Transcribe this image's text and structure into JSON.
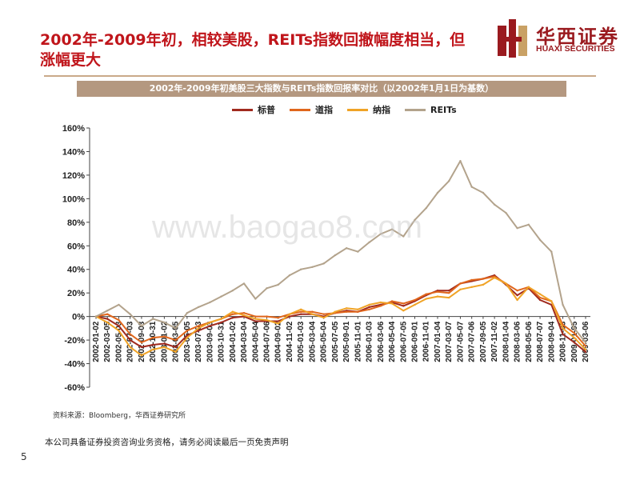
{
  "slide": {
    "title": "2002年-2009年初，相较美股，REITs指数回撤幅度相当，但涨幅更大",
    "source": "资料来源：Bloomberg，华西证券研究所",
    "disclaimer": "本公司具备证券投资咨询业务资格，请务必阅读最后一页免责声明",
    "page_number": "5",
    "watermark": "www.baogao8.com"
  },
  "logo": {
    "cn": "华西证券",
    "en": "HUAXI SECURITIES"
  },
  "colors": {
    "accent": "#c0151b",
    "banner": "#b49880",
    "rule": "#c9a98a"
  },
  "chart_data": {
    "type": "line",
    "title": "2002年-2009年初美股三大指数与REITs指数回报率对比（以2002年1月1日为基数）",
    "ylim": [
      -0.6,
      1.6
    ],
    "yticks": [
      "160%",
      "140%",
      "120%",
      "100%",
      "80%",
      "60%",
      "40%",
      "20%",
      "0%",
      "-20%",
      "-40%",
      "-60%"
    ],
    "ytick_values": [
      1.6,
      1.4,
      1.2,
      1.0,
      0.8,
      0.6,
      0.4,
      0.2,
      0,
      -0.2,
      -0.4,
      -0.6
    ],
    "x": [
      "2002-01-02",
      "2002-03-05",
      "2002-05-03",
      "2002-07-03",
      "2002-09-03",
      "2002-10-31",
      "2003-01-02",
      "2003-03-05",
      "2003-05-05",
      "2003-07-03",
      "2003-09-03",
      "2003-10-31",
      "2004-01-02",
      "2004-03-04",
      "2004-05-04",
      "2004-07-06",
      "2004-09-02",
      "2004-11-02",
      "2005-01-03",
      "2005-03-04",
      "2005-05-04",
      "2005-07-05",
      "2005-09-01",
      "2005-11-01",
      "2006-01-03",
      "2006-03-06",
      "2006-05-04",
      "2006-07-05",
      "2006-09-01",
      "2006-11-01",
      "2007-01-04",
      "2007-03-07",
      "2007-05-07",
      "2007-07-06",
      "2007-09-05",
      "2007-11-02",
      "2008-01-04",
      "2008-03-06",
      "2008-05-06",
      "2008-07-07",
      "2008-09-04",
      "2008-11-03",
      "2009-01-05",
      "2009-03-06"
    ],
    "series": [
      {
        "name": "标普",
        "color": "#a02a1e",
        "values": [
          0,
          -0.02,
          -0.08,
          -0.2,
          -0.26,
          -0.24,
          -0.23,
          -0.26,
          -0.16,
          -0.12,
          -0.08,
          -0.05,
          -0.01,
          0,
          -0.04,
          -0.04,
          -0.04,
          0,
          0.02,
          0.02,
          0,
          0.03,
          0.05,
          0.04,
          0.08,
          0.1,
          0.12,
          0.09,
          0.13,
          0.18,
          0.22,
          0.22,
          0.28,
          0.3,
          0.32,
          0.35,
          0.27,
          0.18,
          0.24,
          0.14,
          0.1,
          -0.15,
          -0.22,
          -0.3
        ]
      },
      {
        "name": "道指",
        "color": "#e0661c",
        "values": [
          0,
          0.02,
          -0.03,
          -0.15,
          -0.22,
          -0.18,
          -0.17,
          -0.2,
          -0.12,
          -0.08,
          -0.05,
          -0.02,
          0.02,
          0.03,
          0,
          0,
          -0.01,
          0.02,
          0.04,
          0.04,
          0.02,
          0.03,
          0.04,
          0.04,
          0.06,
          0.09,
          0.13,
          0.11,
          0.14,
          0.19,
          0.21,
          0.2,
          0.28,
          0.31,
          0.32,
          0.34,
          0.28,
          0.22,
          0.25,
          0.16,
          0.13,
          -0.07,
          -0.14,
          -0.25
        ]
      },
      {
        "name": "纳指",
        "color": "#f0a326",
        "values": [
          0,
          -0.05,
          -0.12,
          -0.26,
          -0.33,
          -0.28,
          -0.26,
          -0.3,
          -0.18,
          -0.1,
          -0.05,
          -0.02,
          0.04,
          0.01,
          -0.02,
          -0.03,
          -0.06,
          0.02,
          0.06,
          0.02,
          -0.01,
          0.04,
          0.07,
          0.06,
          0.1,
          0.12,
          0.11,
          0.05,
          0.1,
          0.15,
          0.17,
          0.16,
          0.23,
          0.25,
          0.27,
          0.33,
          0.28,
          0.14,
          0.25,
          0.19,
          0.13,
          -0.1,
          -0.18,
          -0.28
        ]
      },
      {
        "name": "REITs",
        "color": "#b3a38c",
        "values": [
          0,
          0.05,
          0.1,
          0.02,
          -0.08,
          -0.02,
          -0.05,
          -0.1,
          0.03,
          0.08,
          0.12,
          0.17,
          0.22,
          0.28,
          0.15,
          0.24,
          0.27,
          0.35,
          0.4,
          0.42,
          0.45,
          0.52,
          0.58,
          0.55,
          0.63,
          0.7,
          0.74,
          0.68,
          0.82,
          0.92,
          1.05,
          1.15,
          1.32,
          1.1,
          1.05,
          0.95,
          0.88,
          0.75,
          0.78,
          0.65,
          0.55,
          0.1,
          -0.1,
          -0.22
        ]
      }
    ]
  }
}
